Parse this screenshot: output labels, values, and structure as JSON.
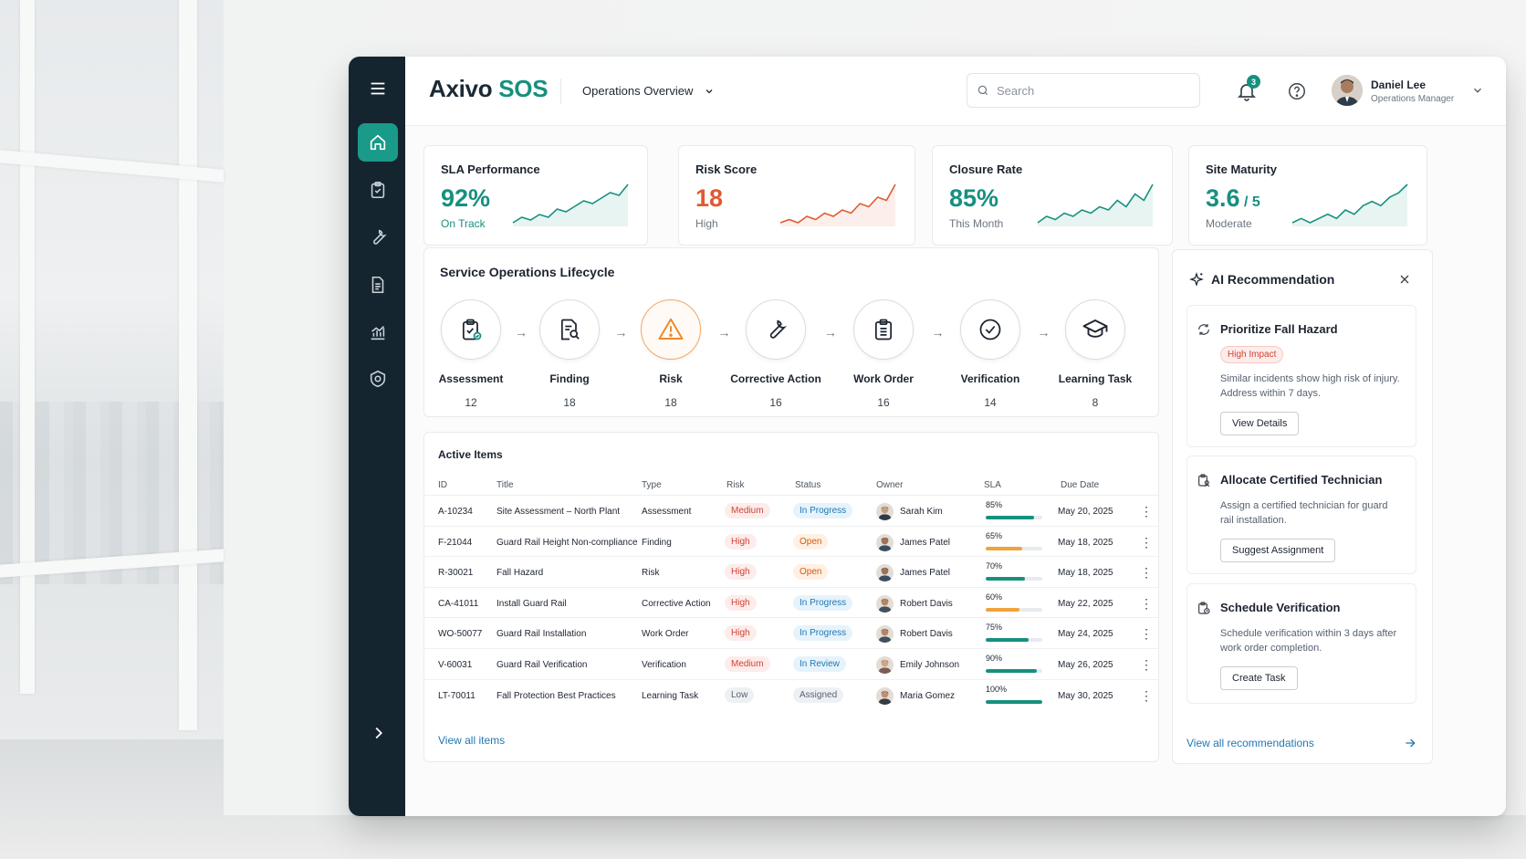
{
  "app": {
    "logo_main": "Axivo",
    "logo_accent": "SOS",
    "view_selector": "Operations Overview"
  },
  "search": {
    "placeholder": "Search"
  },
  "notifications": {
    "count": "3"
  },
  "user": {
    "name": "Daniel Lee",
    "role": "Operations Manager"
  },
  "sidebar": {
    "items": [
      "menu-icon",
      "home-icon",
      "clipboard-check-icon",
      "wrench-icon",
      "document-icon",
      "chart-icon",
      "shield-gear-icon",
      "chevron-right-icon"
    ]
  },
  "kpis": [
    {
      "title": "SLA Performance",
      "value": "92%",
      "suffix": "",
      "sub": "On Track",
      "color": "#17907f",
      "sub_color": "#17907f",
      "trend": [
        3,
        5,
        4,
        6,
        5,
        8,
        7,
        9,
        11,
        10,
        12,
        14,
        13,
        17
      ]
    },
    {
      "title": "Risk Score",
      "value": "18",
      "suffix": "",
      "sub": "High",
      "color": "#e05a33",
      "sub_color": "#6b7580",
      "trend": [
        2,
        3,
        2,
        4,
        3,
        5,
        4,
        6,
        5,
        8,
        7,
        10,
        9,
        14
      ]
    },
    {
      "title": "Closure Rate",
      "value": "85%",
      "suffix": "",
      "sub": "This Month",
      "color": "#17907f",
      "sub_color": "#6b7580",
      "trend": [
        3,
        5,
        4,
        6,
        5,
        7,
        6,
        8,
        7,
        10,
        8,
        12,
        10,
        15
      ]
    },
    {
      "title": "Site Maturity",
      "value": "3.6",
      "suffix": " / 5",
      "sub": "Moderate",
      "color": "#17907f",
      "sub_color": "#6b7580",
      "trend": [
        2,
        3,
        2,
        3,
        4,
        3,
        5,
        4,
        6,
        7,
        6,
        8,
        9,
        11
      ]
    }
  ],
  "lifecycle": {
    "title": "Service Operations Lifecycle",
    "stages": [
      {
        "label": "Assessment",
        "count": "12"
      },
      {
        "label": "Finding",
        "count": "18"
      },
      {
        "label": "Risk",
        "count": "18"
      },
      {
        "label": "Corrective Action",
        "count": "16"
      },
      {
        "label": "Work Order",
        "count": "16"
      },
      {
        "label": "Verification",
        "count": "14"
      },
      {
        "label": "Learning Task",
        "count": "8"
      }
    ]
  },
  "table": {
    "title": "Active Items",
    "headers": [
      "ID",
      "Title",
      "Type",
      "Risk",
      "Status",
      "Owner",
      "SLA",
      "Due Date"
    ],
    "rows": [
      {
        "id": "A-10234",
        "title": "Site Assessment – North Plant",
        "type": "Assessment",
        "risk": "Medium",
        "status": "In Progress",
        "owner": "Sarah Kim",
        "sla": "85%",
        "sla_value": 0.85,
        "sla_color": "#17907f",
        "due": "May 20, 2025"
      },
      {
        "id": "F-21044",
        "title": "Guard Rail Height Non-compliance",
        "type": "Finding",
        "risk": "High",
        "status": "Open",
        "owner": "James Patel",
        "sla": "65%",
        "sla_value": 0.65,
        "sla_color": "#f0a33a",
        "due": "May 18, 2025"
      },
      {
        "id": "R-30021",
        "title": "Fall Hazard",
        "type": "Risk",
        "risk": "High",
        "status": "Open",
        "owner": "James Patel",
        "sla": "70%",
        "sla_value": 0.7,
        "sla_color": "#17907f",
        "due": "May 18, 2025"
      },
      {
        "id": "CA-41011",
        "title": "Install Guard Rail",
        "type": "Corrective Action",
        "risk": "High",
        "status": "In Progress",
        "owner": "Robert Davis",
        "sla": "60%",
        "sla_value": 0.6,
        "sla_color": "#f0a33a",
        "due": "May 22, 2025"
      },
      {
        "id": "WO-50077",
        "title": "Guard Rail Installation",
        "type": "Work Order",
        "risk": "High",
        "status": "In Progress",
        "owner": "Robert Davis",
        "sla": "75%",
        "sla_value": 0.75,
        "sla_color": "#17907f",
        "due": "May 24, 2025"
      },
      {
        "id": "V-60031",
        "title": "Guard Rail Verification",
        "type": "Verification",
        "risk": "Medium",
        "status": "In Review",
        "owner": "Emily Johnson",
        "sla": "90%",
        "sla_value": 0.9,
        "sla_color": "#17907f",
        "due": "May 26, 2025"
      },
      {
        "id": "LT-70011",
        "title": "Fall Protection Best Practices",
        "type": "Learning Task",
        "risk": "Low",
        "status": "Assigned",
        "owner": "Maria Gomez",
        "sla": "100%",
        "sla_value": 1.0,
        "sla_color": "#17907f",
        "due": "May 30, 2025"
      }
    ],
    "view_all": "View all items"
  },
  "ai": {
    "title": "AI Recommendation",
    "recommendations": [
      {
        "title": "Prioritize Fall Hazard",
        "tag": "High Impact",
        "desc": "Similar incidents show high risk of injury. Address within 7 days.",
        "button": "View Details"
      },
      {
        "title": "Allocate Certified Technician",
        "tag": "",
        "desc": "Assign a certified technician for guard rail installation.",
        "button": "Suggest Assignment"
      },
      {
        "title": "Schedule Verification",
        "tag": "",
        "desc": "Schedule verification within 3 days after work order completion.",
        "button": "Create Task"
      }
    ],
    "view_all": "View all recommendations"
  }
}
